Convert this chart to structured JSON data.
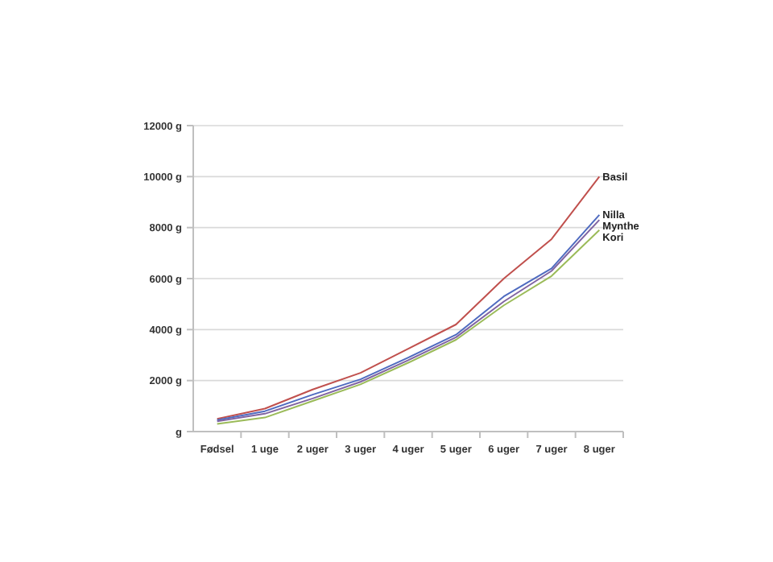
{
  "chart_data": {
    "type": "line",
    "categories": [
      "Fødsel",
      "1 uge",
      "2 uger",
      "3 uger",
      "4 uger",
      "5 uger",
      "6 uger",
      "7 uger",
      "8 uger"
    ],
    "series": [
      {
        "name": "Basil",
        "color": "#c0504d",
        "values": [
          500,
          900,
          1650,
          2300,
          3250,
          4200,
          6000,
          7550,
          10000
        ]
      },
      {
        "name": "Nilla",
        "color": "#4f6bc0",
        "values": [
          450,
          800,
          1450,
          2050,
          2900,
          3800,
          5300,
          6400,
          8500
        ]
      },
      {
        "name": "Mynthe",
        "color": "#8064a2",
        "values": [
          400,
          700,
          1300,
          1950,
          2800,
          3700,
          5100,
          6300,
          8300
        ]
      },
      {
        "name": "Kori",
        "color": "#9bbb59",
        "values": [
          300,
          550,
          1200,
          1850,
          2700,
          3600,
          4950,
          6100,
          7900
        ]
      }
    ],
    "ylim": [
      0,
      12000
    ],
    "yticks": [
      {
        "value": 0,
        "label": "g"
      },
      {
        "value": 2000,
        "label": "2000 g"
      },
      {
        "value": 4000,
        "label": "4000 g"
      },
      {
        "value": 6000,
        "label": "6000 g"
      },
      {
        "value": 8000,
        "label": "8000 g"
      },
      {
        "value": 10000,
        "label": "10000 g"
      },
      {
        "value": 12000,
        "label": "12000 g"
      }
    ],
    "grid": "y"
  }
}
